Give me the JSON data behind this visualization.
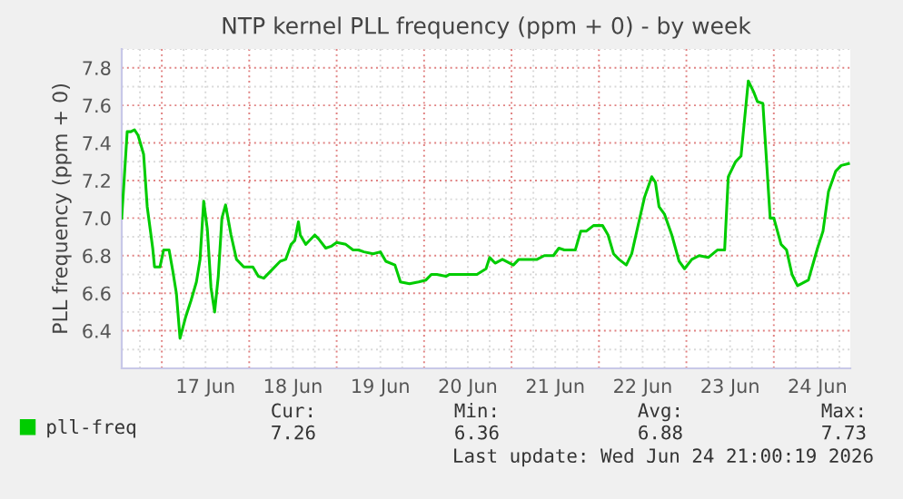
{
  "chart_data": {
    "type": "line",
    "title": "NTP kernel PLL frequency (ppm + 0) - by week",
    "ylabel": "PLL frequency (ppm + 0)",
    "xlim": [
      "2026-06-16T13:00",
      "2026-06-24T21:00"
    ],
    "xticks": [
      {
        "value": "2026-06-17T12:00",
        "label": "17 Jun"
      },
      {
        "value": "2026-06-18T12:00",
        "label": "18 Jun"
      },
      {
        "value": "2026-06-19T12:00",
        "label": "19 Jun"
      },
      {
        "value": "2026-06-20T12:00",
        "label": "20 Jun"
      },
      {
        "value": "2026-06-21T12:00",
        "label": "21 Jun"
      },
      {
        "value": "2026-06-22T12:00",
        "label": "22 Jun"
      },
      {
        "value": "2026-06-23T12:00",
        "label": "23 Jun"
      },
      {
        "value": "2026-06-24T12:00",
        "label": "24 Jun"
      }
    ],
    "ylim": [
      6.2,
      7.9
    ],
    "yticks": [
      6.4,
      6.6,
      6.8,
      {
        "value": 7.0,
        "label": "7.0"
      },
      7.2,
      7.4,
      7.6,
      7.8
    ],
    "grid": true,
    "legend": "bottom",
    "marker": "none",
    "line_style": "solid",
    "series": [
      {
        "name": "pll-freq",
        "color": "#00cc00",
        "x": [
          "2026-06-16T13:00",
          "2026-06-16T14:30",
          "2026-06-16T15:30",
          "2026-06-16T16:30",
          "2026-06-16T17:30",
          "2026-06-16T19:00",
          "2026-06-16T20:00",
          "2026-06-16T21:30",
          "2026-06-16T22:00",
          "2026-06-16T23:30",
          "2026-06-17T00:30",
          "2026-06-17T02:00",
          "2026-06-17T03:00",
          "2026-06-17T04:00",
          "2026-06-17T05:00",
          "2026-06-17T06:30",
          "2026-06-17T08:00",
          "2026-06-17T09:30",
          "2026-06-17T10:30",
          "2026-06-17T11:30",
          "2026-06-17T12:30",
          "2026-06-17T13:30",
          "2026-06-17T14:30",
          "2026-06-17T15:30",
          "2026-06-17T16:30",
          "2026-06-17T17:30",
          "2026-06-17T19:00",
          "2026-06-17T20:30",
          "2026-06-17T22:30",
          "2026-06-18T01:00",
          "2026-06-18T02:30",
          "2026-06-18T04:00",
          "2026-06-18T06:00",
          "2026-06-18T08:30",
          "2026-06-18T10:00",
          "2026-06-18T11:30",
          "2026-06-18T12:30",
          "2026-06-18T13:30",
          "2026-06-18T14:00",
          "2026-06-18T15:30",
          "2026-06-18T16:30",
          "2026-06-18T18:00",
          "2026-06-18T19:00",
          "2026-06-18T21:00",
          "2026-06-18T22:30",
          "2026-06-19T00:00",
          "2026-06-19T02:30",
          "2026-06-19T04:30",
          "2026-06-19T06:00",
          "2026-06-19T07:30",
          "2026-06-19T10:00",
          "2026-06-19T12:00",
          "2026-06-19T13:30",
          "2026-06-19T16:00",
          "2026-06-19T17:30",
          "2026-06-19T20:00",
          "2026-06-19T22:30",
          "2026-06-20T00:30",
          "2026-06-20T02:00",
          "2026-06-20T03:30",
          "2026-06-20T06:00",
          "2026-06-20T07:00",
          "2026-06-20T14:30",
          "2026-06-20T17:00",
          "2026-06-20T18:00",
          "2026-06-20T19:30",
          "2026-06-20T21:30",
          "2026-06-21T00:30",
          "2026-06-21T02:00",
          "2026-06-21T07:00",
          "2026-06-21T09:00",
          "2026-06-21T11:30",
          "2026-06-21T13:00",
          "2026-06-21T14:30",
          "2026-06-21T17:30",
          "2026-06-21T19:00",
          "2026-06-21T20:30",
          "2026-06-21T22:30",
          "2026-06-22T01:00",
          "2026-06-22T02:30",
          "2026-06-22T04:00",
          "2026-06-22T05:30",
          "2026-06-22T07:30",
          "2026-06-22T09:00",
          "2026-06-22T10:30",
          "2026-06-22T12:30",
          "2026-06-22T14:30",
          "2026-06-22T15:30",
          "2026-06-22T16:30",
          "2026-06-22T18:00",
          "2026-06-22T20:00",
          "2026-06-22T22:00",
          "2026-06-22T23:30",
          "2026-06-23T01:30",
          "2026-06-23T03:30",
          "2026-06-23T06:00",
          "2026-06-23T08:30",
          "2026-06-23T10:30",
          "2026-06-23T11:30",
          "2026-06-23T13:30",
          "2026-06-23T15:00",
          "2026-06-23T17:00",
          "2026-06-23T18:30",
          "2026-06-23T19:30",
          "2026-06-23T21:00",
          "2026-06-23T23:00",
          "2026-06-24T00:00",
          "2026-06-24T02:00",
          "2026-06-24T03:30",
          "2026-06-24T05:00",
          "2026-06-24T06:30",
          "2026-06-24T07:30",
          "2026-06-24T09:30",
          "2026-06-24T12:00",
          "2026-06-24T13:30",
          "2026-06-24T15:00",
          "2026-06-24T17:00",
          "2026-06-24T18:30",
          "2026-06-24T20:30"
        ],
        "values": [
          7.0,
          7.46,
          7.46,
          7.47,
          7.44,
          7.34,
          7.06,
          6.84,
          6.74,
          6.74,
          6.83,
          6.83,
          6.72,
          6.6,
          6.36,
          6.47,
          6.56,
          6.66,
          6.78,
          7.09,
          6.94,
          6.63,
          6.5,
          6.69,
          7.0,
          7.07,
          6.91,
          6.78,
          6.74,
          6.74,
          6.69,
          6.68,
          6.72,
          6.77,
          6.78,
          6.86,
          6.88,
          6.98,
          6.91,
          6.86,
          6.88,
          6.91,
          6.89,
          6.84,
          6.85,
          6.87,
          6.86,
          6.83,
          6.83,
          6.82,
          6.81,
          6.82,
          6.77,
          6.75,
          6.66,
          6.65,
          6.66,
          6.67,
          6.7,
          6.7,
          6.69,
          6.7,
          6.7,
          6.73,
          6.79,
          6.76,
          6.78,
          6.75,
          6.78,
          6.78,
          6.8,
          6.8,
          6.84,
          6.83,
          6.83,
          6.93,
          6.93,
          6.96,
          6.96,
          6.91,
          6.81,
          6.78,
          6.75,
          6.81,
          6.94,
          7.11,
          7.22,
          7.19,
          7.06,
          7.02,
          6.91,
          6.77,
          6.73,
          6.78,
          6.8,
          6.79,
          6.83,
          6.83,
          7.22,
          7.3,
          7.33,
          7.73,
          7.67,
          7.62,
          7.61,
          7.0,
          7.0,
          6.86,
          6.83,
          6.7,
          6.64,
          6.65,
          6.67,
          6.84,
          6.93,
          7.14,
          7.25,
          7.28,
          7.29
        ]
      }
    ],
    "annotations": [
      "Cur:\n7.26",
      "Min:\n6.36",
      "Avg:\n6.88",
      "Max:\n7.73",
      "Last update: Wed Jun 24 21:00:19 2026"
    ]
  }
}
